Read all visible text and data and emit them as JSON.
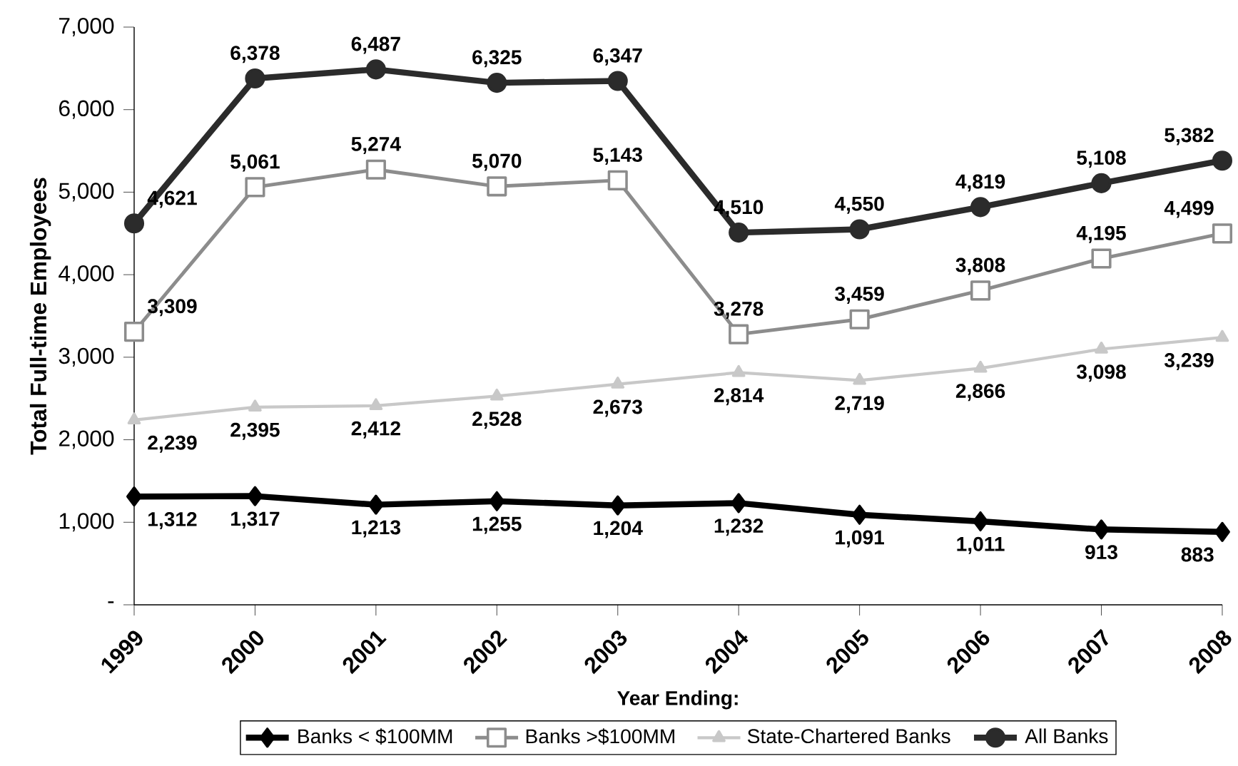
{
  "chart_data": {
    "type": "line",
    "xlabel": "Year Ending:",
    "ylabel": "Total Full-time Employees",
    "categories": [
      "1999",
      "2000",
      "2001",
      "2002",
      "2003",
      "2004",
      "2005",
      "2006",
      "2007",
      "2008"
    ],
    "ylim": [
      0,
      7000
    ],
    "yticks": [
      {
        "value": 0,
        "label": "-"
      },
      {
        "value": 1000,
        "label": "1,000"
      },
      {
        "value": 2000,
        "label": "2,000"
      },
      {
        "value": 3000,
        "label": "3,000"
      },
      {
        "value": 4000,
        "label": "4,000"
      },
      {
        "value": 5000,
        "label": "5,000"
      },
      {
        "value": 6000,
        "label": "6,000"
      },
      {
        "value": 7000,
        "label": "7,000"
      }
    ],
    "grid": false,
    "legend": "bottom",
    "series": [
      {
        "name": "Banks < $100MM",
        "color": "#000000",
        "marker": "diamond",
        "values": [
          1312,
          1317,
          1213,
          1255,
          1204,
          1232,
          1091,
          1011,
          913,
          883
        ],
        "value_labels": [
          "1,312",
          "1,317",
          "1,213",
          "1,255",
          "1,204",
          "1,232",
          "1,091",
          "1,011",
          "913",
          "883"
        ]
      },
      {
        "name": "Banks >$100MM",
        "color": "#8c8c8c",
        "marker": "square",
        "values": [
          3309,
          5061,
          5274,
          5070,
          5143,
          3278,
          3459,
          3808,
          4195,
          4499
        ],
        "value_labels": [
          "3,309",
          "5,061",
          "5,274",
          "5,070",
          "5,143",
          "3,278",
          "3,459",
          "3,808",
          "4,195",
          "4,499"
        ]
      },
      {
        "name": "State-Chartered Banks",
        "color": "#c8c8c8",
        "marker": "triangle",
        "values": [
          2239,
          2395,
          2412,
          2528,
          2673,
          2814,
          2719,
          2866,
          3098,
          3239
        ],
        "value_labels": [
          "2,239",
          "2,395",
          "2,412",
          "2,528",
          "2,673",
          "2,814",
          "2,719",
          "2,866",
          "3,098",
          "3,239"
        ]
      },
      {
        "name": "All Banks",
        "color": "#2b2b2b",
        "marker": "circle",
        "values": [
          4621,
          6378,
          6487,
          6325,
          6347,
          4510,
          4550,
          4819,
          5108,
          5382
        ],
        "value_labels": [
          "4,621",
          "6,378",
          "6,487",
          "6,325",
          "6,347",
          "4,510",
          "4,550",
          "4,819",
          "5,108",
          "5,382"
        ]
      }
    ]
  }
}
